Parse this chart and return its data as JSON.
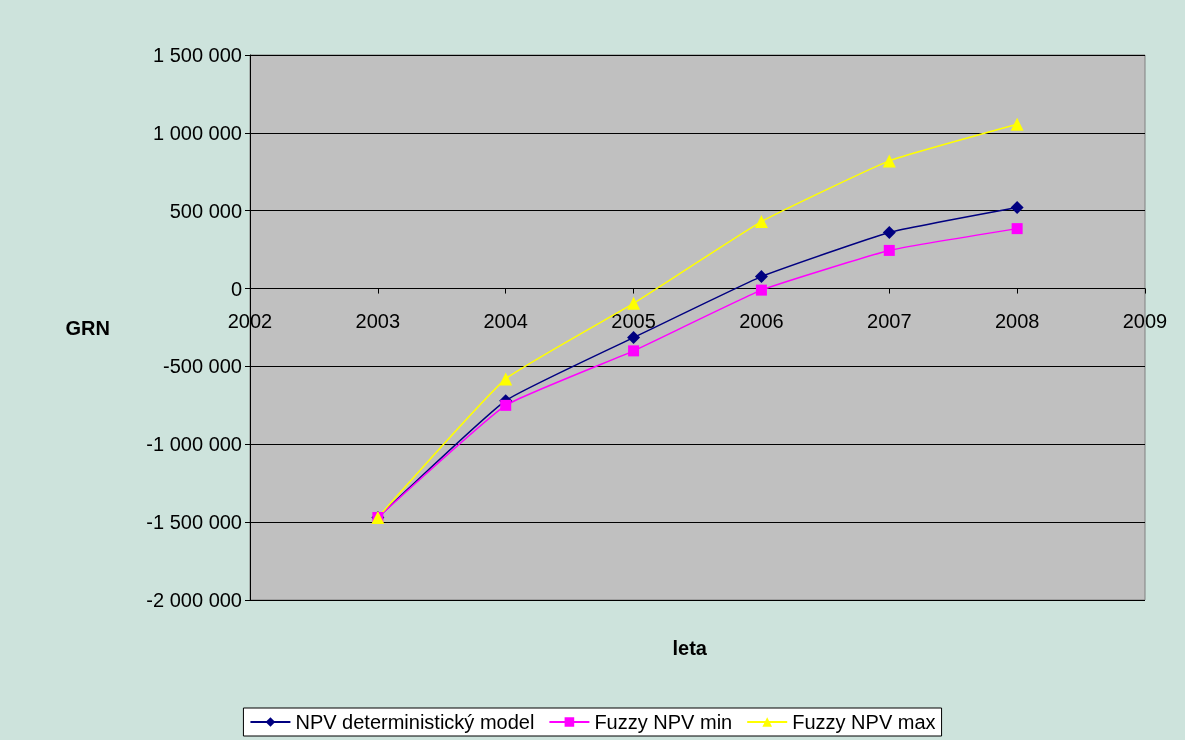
{
  "chart_data": {
    "type": "line",
    "x": [
      2003,
      2004,
      2005,
      2006,
      2007,
      2008
    ],
    "series": [
      {
        "name": "NPV deterministický model",
        "color": "#000080",
        "marker": "diamond",
        "values": [
          -1470000,
          -720000,
          -315000,
          77000,
          360000,
          520000
        ]
      },
      {
        "name": "Fuzzy NPV min",
        "color": "#ff00ff",
        "marker": "square",
        "values": [
          -1470000,
          -750000,
          -400000,
          -10000,
          245000,
          385000
        ]
      },
      {
        "name": "Fuzzy NPV max",
        "color": "#ffff00",
        "marker": "triangle",
        "values": [
          -1470000,
          -580000,
          -95000,
          430000,
          820000,
          1055000
        ]
      }
    ],
    "xlabel": "leta",
    "ylabel": "GRN",
    "xlim": [
      2002,
      2009
    ],
    "xticks": [
      2002,
      2003,
      2004,
      2005,
      2006,
      2007,
      2008,
      2009
    ],
    "ylim": [
      -2000000,
      1500000
    ],
    "yticks": [
      {
        "value": -2000000,
        "label": "-2 000 000"
      },
      {
        "value": -1500000,
        "label": "-1 500 000"
      },
      {
        "value": -1000000,
        "label": "-1 000 000"
      },
      {
        "value": -500000,
        "label": "-500 000"
      },
      {
        "value": 0,
        "label": "0"
      },
      {
        "value": 500000,
        "label": "500 000"
      },
      {
        "value": 1000000,
        "label": "1 000 000"
      },
      {
        "value": 1500000,
        "label": "1 500 000"
      }
    ],
    "grid": "y",
    "legend": "bottom",
    "line_style": "solid"
  }
}
